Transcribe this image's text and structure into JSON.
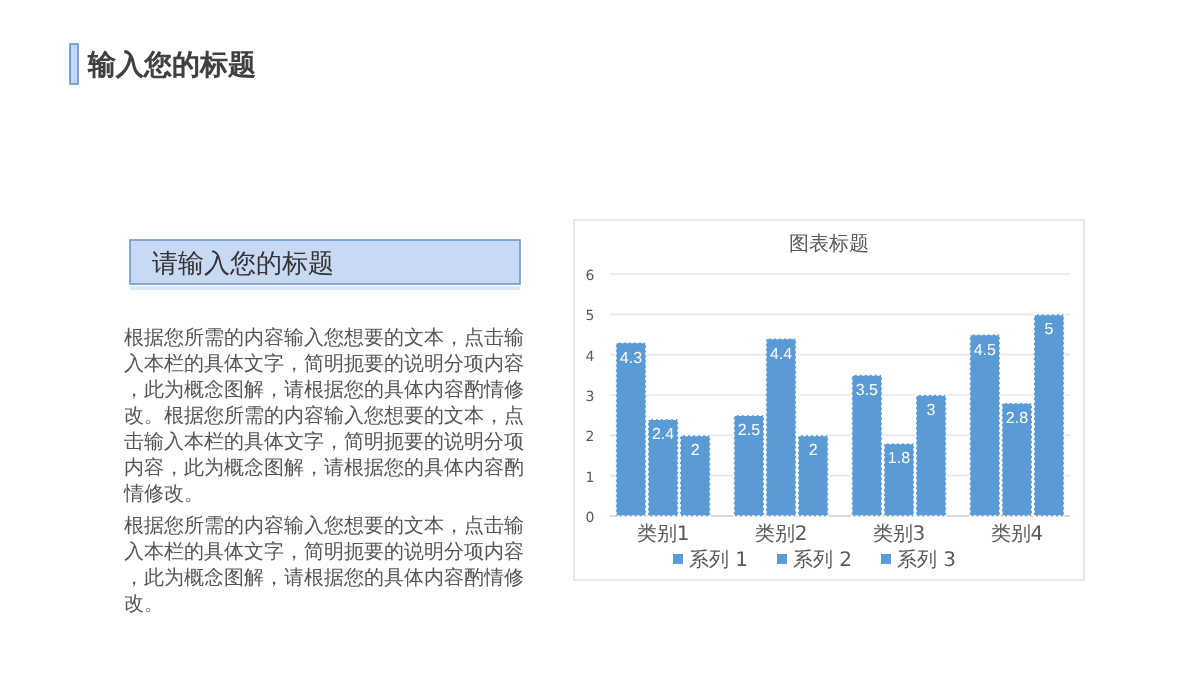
{
  "chart_data": {
    "type": "bar",
    "title": "图表标题",
    "categories": [
      "类别1",
      "类别2",
      "类别3",
      "类别4"
    ],
    "series": [
      {
        "name": "系列 1",
        "color": "#5b9bd5",
        "values": [
          4.3,
          2.5,
          3.5,
          4.5
        ]
      },
      {
        "name": "系列 2",
        "color": "#5b9bd5",
        "values": [
          2.4,
          4.4,
          1.8,
          2.8
        ]
      },
      {
        "name": "系列 3",
        "color": "#5b9bd5",
        "values": [
          2,
          2,
          3,
          5
        ]
      }
    ],
    "ylim": [
      0,
      6
    ],
    "yticks": [
      0,
      1,
      2,
      3,
      4,
      5,
      6
    ],
    "grid": "y",
    "legend": "bottom",
    "data_labels": true,
    "annotations": [
      "输入您的标题",
      "请输入您的标题",
      "根据您所需的内容输入您想要的文本，点击输入本栏的具体文字，简明扼要的说明分项内容，此为概念图解，请根据您的具体内容酌情修改。根据您所需的内容输入您想要的文本，点击输入本栏的具体文字，简明扼要的说明分项内容，此为概念图解，请根据您的具体内容酌情修改。",
      "根据您所需的内容输入您想要的文本，点击输入本栏的具体文字，简明扼要的说明分项内容，此为概念图解，请根据您的具体内容酌情修改。"
    ]
  }
}
